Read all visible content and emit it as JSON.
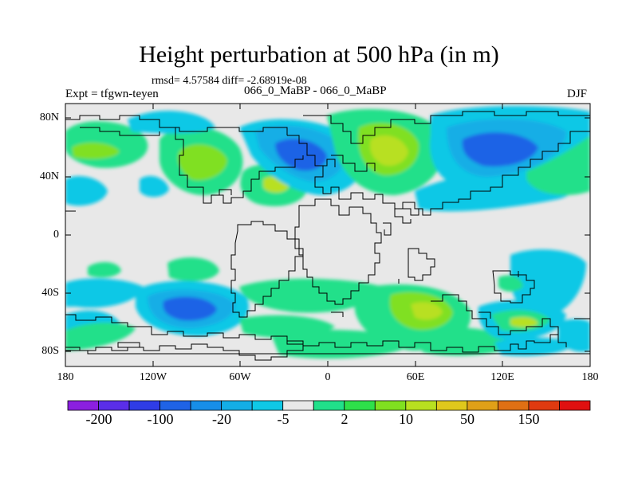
{
  "title": "Height perturbation at 500 hPa (in m)",
  "stats_line": "rmsd= 4.57584 diff= -2.68919e-08",
  "experiment_label": "Expt = tfgwn-teyen",
  "runs_label": "066_0_MaBP - 066_0_MaBP",
  "season": "DJF",
  "axes": {
    "lat_labels": [
      "80N",
      "40N",
      "0",
      "40S",
      "80S"
    ],
    "lon_labels": [
      "180",
      "120W",
      "60W",
      "0",
      "60E",
      "120E",
      "180"
    ]
  },
  "colorbar": {
    "labels": [
      "-200",
      "-100",
      "-20",
      "-5",
      "2",
      "10",
      "50",
      "150"
    ],
    "colors": [
      "#8b1fe0",
      "#5a2ee8",
      "#2f3ce6",
      "#1f63e6",
      "#178ee8",
      "#14aee6",
      "#0fc8e6",
      "#e8e8e8",
      "#21e08a",
      "#2ee04a",
      "#80e020",
      "#b8e020",
      "#e0c81c",
      "#e0a018",
      "#e07014",
      "#e03a10",
      "#e01010"
    ]
  },
  "colors": {
    "neutral": "#e8e8e8",
    "cyan": "#0fc8e6",
    "sky": "#14aee6",
    "blue": "#1f63e6",
    "green": "#21e08a",
    "lime": "#80e020",
    "yellow": "#b8e020",
    "coast": "#000000"
  }
}
